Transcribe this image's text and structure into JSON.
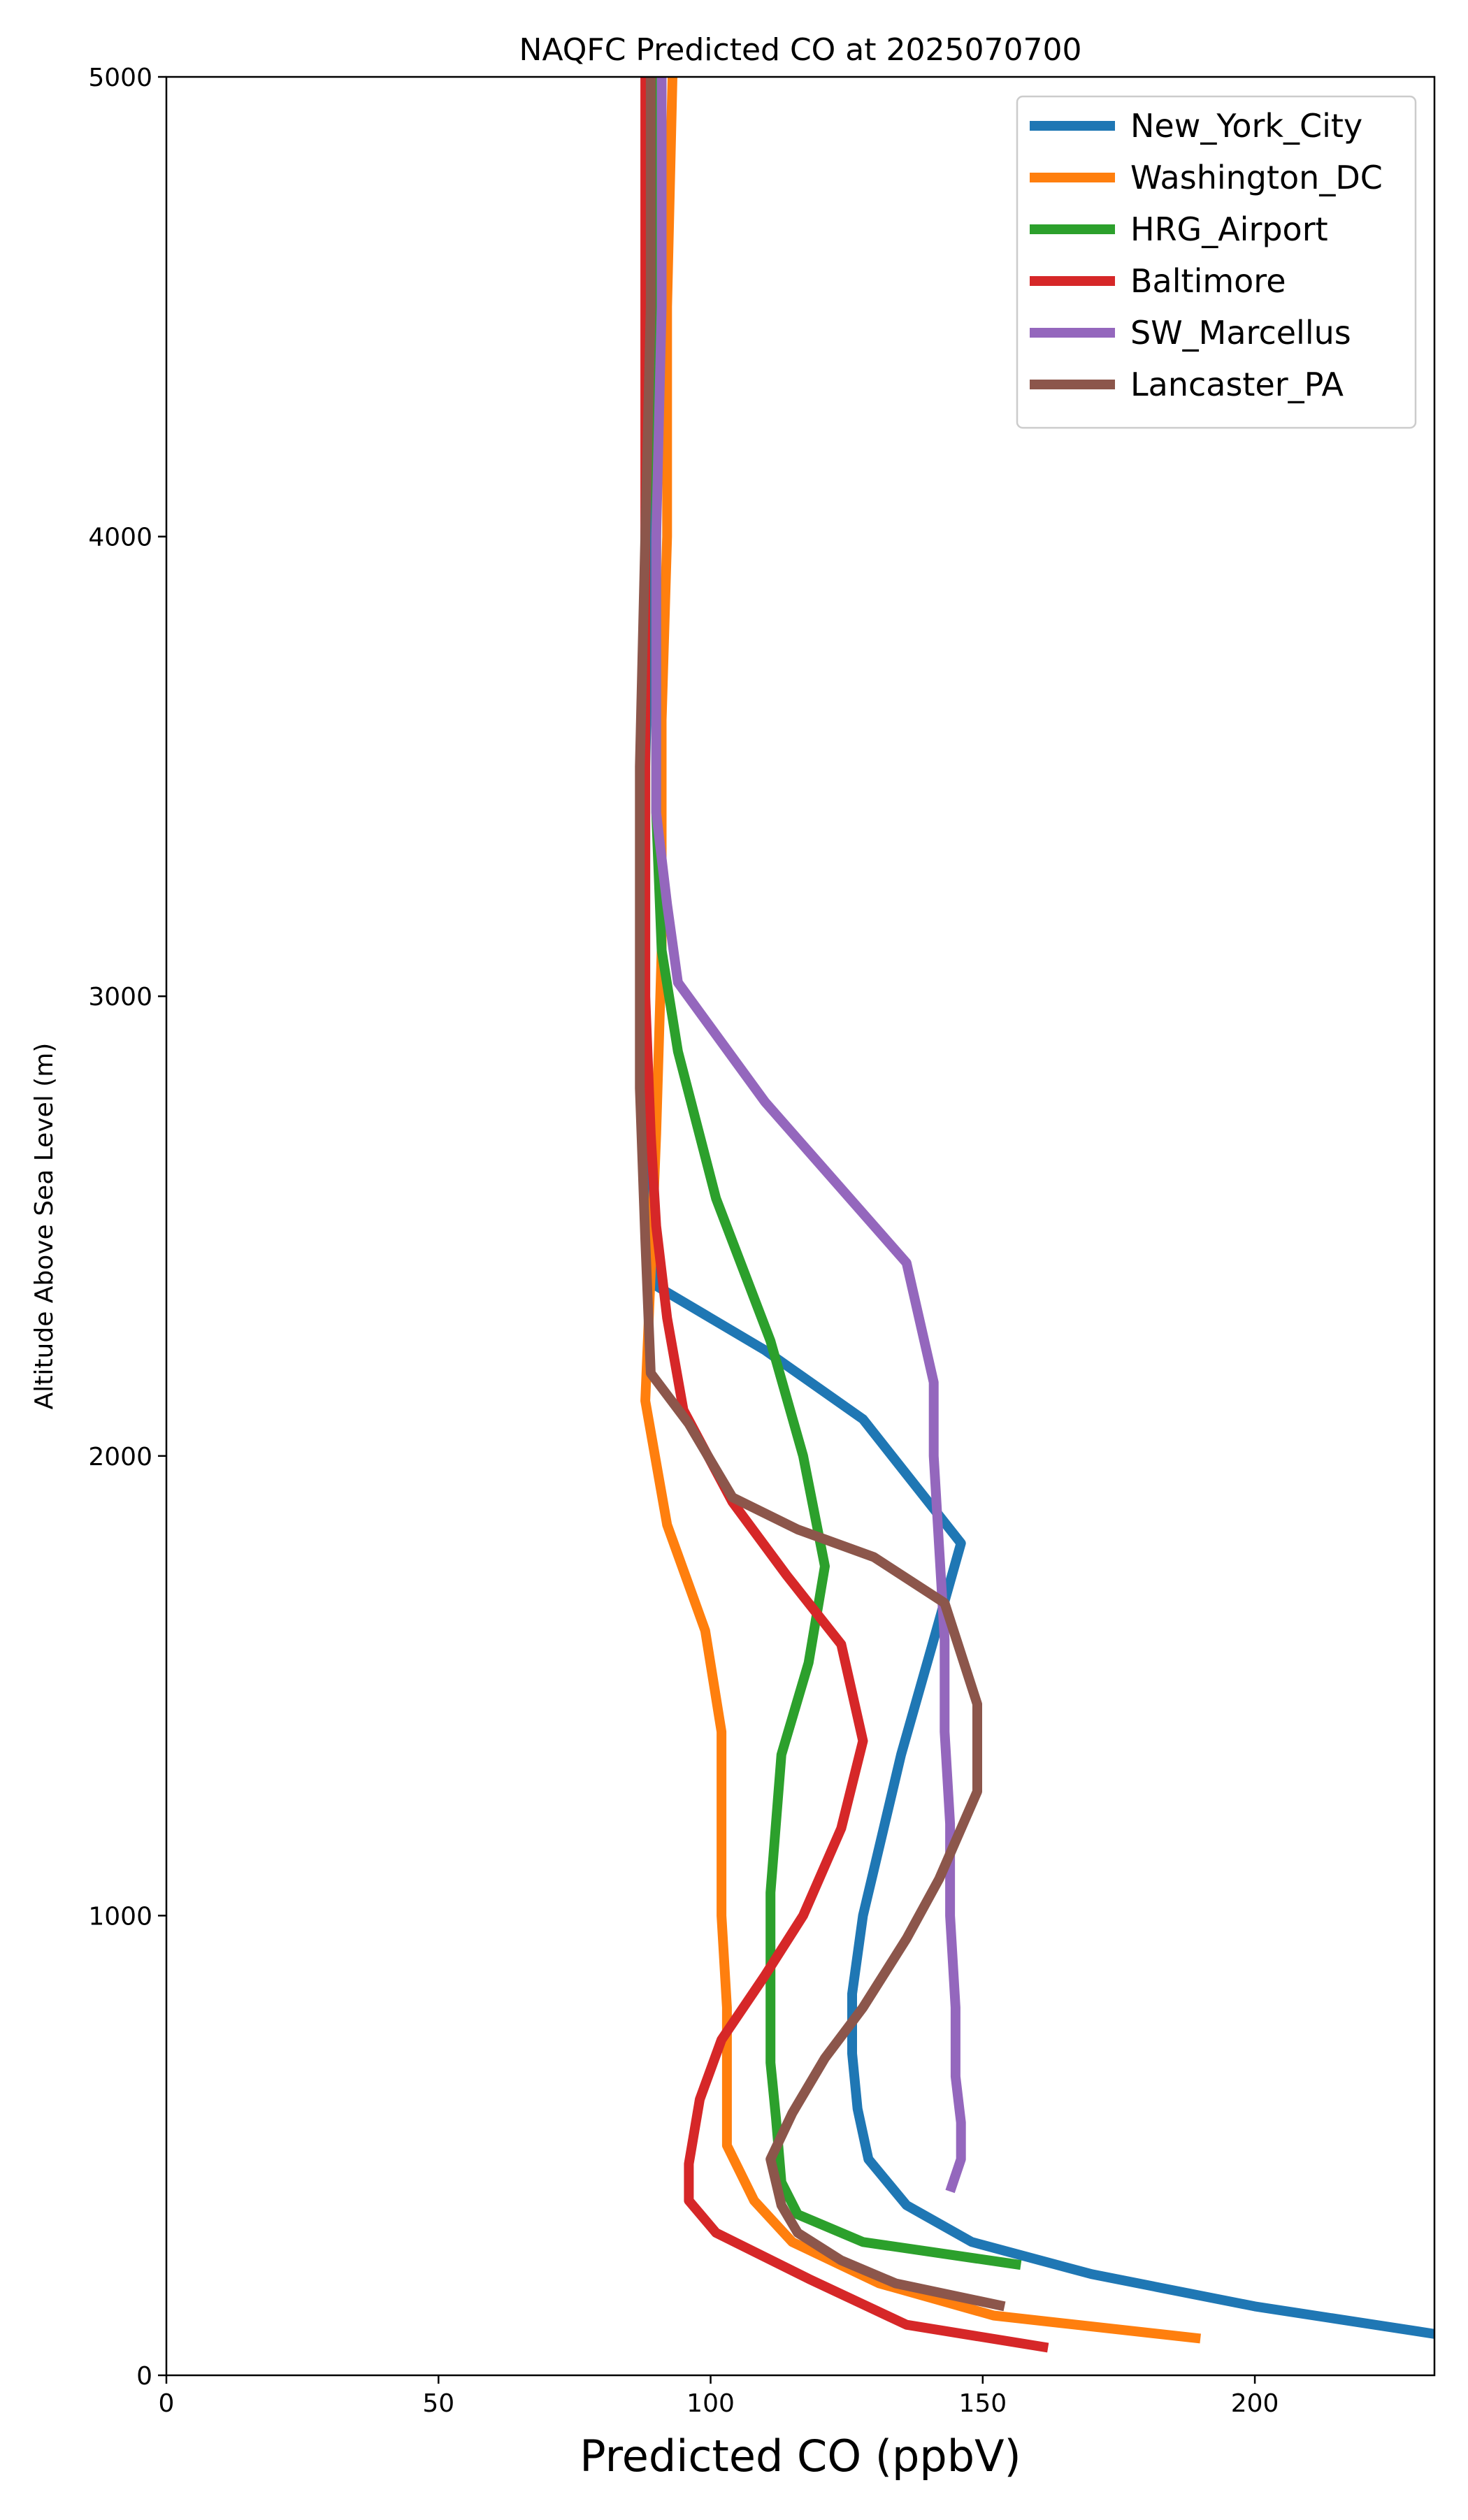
{
  "chart_data": {
    "type": "line",
    "title": "NAQFC Predicted CO at 2025070700",
    "xlabel": "Predicted CO (ppbV)",
    "ylabel": "Altitude Above Sea Level (m)",
    "xlim": [
      0,
      233
    ],
    "ylim": [
      0,
      5000
    ],
    "xticks": [
      0,
      50,
      100,
      150,
      200
    ],
    "yticks": [
      0,
      1000,
      2000,
      3000,
      4000,
      5000
    ],
    "grid": false,
    "legend_position": "top-right",
    "series": [
      {
        "name": "New_York_City",
        "color": "#1f77b4",
        "points": [
          [
            233,
            90
          ],
          [
            200,
            150
          ],
          [
            170,
            220
          ],
          [
            148,
            290
          ],
          [
            136,
            370
          ],
          [
            129,
            470
          ],
          [
            127,
            580
          ],
          [
            126,
            700
          ],
          [
            126,
            830
          ],
          [
            128,
            1000
          ],
          [
            131,
            1150
          ],
          [
            135,
            1350
          ],
          [
            141,
            1600
          ],
          [
            146,
            1810
          ],
          [
            128,
            2080
          ],
          [
            110,
            2230
          ],
          [
            90,
            2370
          ],
          [
            89,
            2500
          ],
          [
            88,
            2700
          ],
          [
            88,
            3050
          ],
          [
            88,
            3500
          ],
          [
            89,
            4000
          ],
          [
            89,
            4500
          ],
          [
            90,
            5000
          ]
        ]
      },
      {
        "name": "Washington_DC",
        "color": "#ff7f0e",
        "points": [
          [
            190,
            80
          ],
          [
            152,
            130
          ],
          [
            131,
            200
          ],
          [
            115,
            290
          ],
          [
            108,
            380
          ],
          [
            103,
            500
          ],
          [
            103,
            650
          ],
          [
            103,
            800
          ],
          [
            102,
            1000
          ],
          [
            102,
            1200
          ],
          [
            102,
            1400
          ],
          [
            99,
            1620
          ],
          [
            92,
            1850
          ],
          [
            88,
            2120
          ],
          [
            89,
            2400
          ],
          [
            90,
            2700
          ],
          [
            91,
            3100
          ],
          [
            91,
            3600
          ],
          [
            92,
            4000
          ],
          [
            92,
            4500
          ],
          [
            93,
            5000
          ]
        ]
      },
      {
        "name": "HRG_Airport",
        "color": "#2ca02c",
        "points": [
          [
            157,
            240
          ],
          [
            128,
            290
          ],
          [
            116,
            350
          ],
          [
            113,
            420
          ],
          [
            112,
            560
          ],
          [
            111,
            680
          ],
          [
            111,
            850
          ],
          [
            111,
            1050
          ],
          [
            112,
            1200
          ],
          [
            113,
            1350
          ],
          [
            118,
            1550
          ],
          [
            121,
            1760
          ],
          [
            117,
            2000
          ],
          [
            111,
            2250
          ],
          [
            101,
            2560
          ],
          [
            94,
            2880
          ],
          [
            91,
            3100
          ],
          [
            90,
            3400
          ],
          [
            90,
            3700
          ],
          [
            90,
            4000
          ],
          [
            90,
            4500
          ],
          [
            90,
            5000
          ]
        ]
      },
      {
        "name": "Baltimore",
        "color": "#d62728",
        "points": [
          [
            162,
            60
          ],
          [
            136,
            110
          ],
          [
            118,
            210
          ],
          [
            101,
            310
          ],
          [
            96,
            380
          ],
          [
            96,
            460
          ],
          [
            98,
            600
          ],
          [
            102,
            730
          ],
          [
            110,
            870
          ],
          [
            117,
            1000
          ],
          [
            124,
            1190
          ],
          [
            128,
            1380
          ],
          [
            124,
            1590
          ],
          [
            114,
            1740
          ],
          [
            104,
            1900
          ],
          [
            95,
            2100
          ],
          [
            92,
            2300
          ],
          [
            90,
            2500
          ],
          [
            89,
            2700
          ],
          [
            88,
            3000
          ],
          [
            88,
            3500
          ],
          [
            88,
            4000
          ],
          [
            88,
            4500
          ],
          [
            88,
            5000
          ]
        ]
      },
      {
        "name": "SW_Marcellus",
        "color": "#9467bd",
        "points": [
          [
            144,
            400
          ],
          [
            146,
            470
          ],
          [
            146,
            550
          ],
          [
            145,
            650
          ],
          [
            145,
            800
          ],
          [
            144,
            1000
          ],
          [
            144,
            1200
          ],
          [
            143,
            1400
          ],
          [
            143,
            1600
          ],
          [
            142,
            1800
          ],
          [
            141,
            2000
          ],
          [
            141,
            2160
          ],
          [
            136,
            2420
          ],
          [
            110,
            2770
          ],
          [
            94,
            3030
          ],
          [
            92,
            3200
          ],
          [
            90,
            3400
          ],
          [
            90,
            3700
          ],
          [
            90,
            4000
          ],
          [
            91,
            4500
          ],
          [
            91,
            5000
          ]
        ]
      },
      {
        "name": "Lancaster_PA",
        "color": "#8c564b",
        "points": [
          [
            154,
            150
          ],
          [
            134,
            200
          ],
          [
            124,
            250
          ],
          [
            116,
            310
          ],
          [
            113,
            370
          ],
          [
            111,
            470
          ],
          [
            115,
            570
          ],
          [
            121,
            690
          ],
          [
            128,
            800
          ],
          [
            136,
            950
          ],
          [
            142,
            1080
          ],
          [
            149,
            1270
          ],
          [
            149,
            1460
          ],
          [
            143,
            1680
          ],
          [
            130,
            1780
          ],
          [
            116,
            1840
          ],
          [
            104,
            1910
          ],
          [
            96,
            2070
          ],
          [
            89,
            2180
          ],
          [
            88,
            2470
          ],
          [
            87,
            2800
          ],
          [
            87,
            3100
          ],
          [
            87,
            3500
          ],
          [
            88,
            4000
          ],
          [
            89,
            4500
          ],
          [
            89,
            5000
          ]
        ]
      }
    ]
  }
}
